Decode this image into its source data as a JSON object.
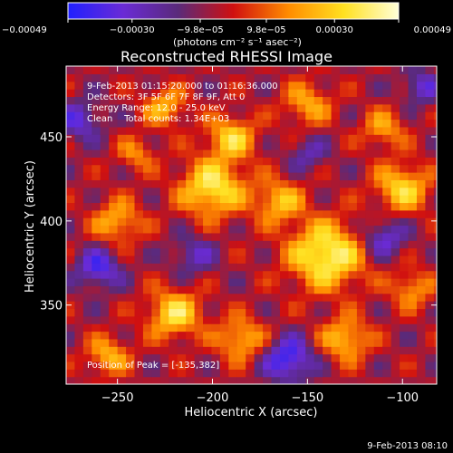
{
  "chart_data": {
    "type": "heatmap",
    "title": "Reconstructed RHESSI Image",
    "xlabel": "Heliocentric X (arcsec)",
    "ylabel": "Heliocentric Y (arcsec)",
    "xlim": [
      -277,
      -82
    ],
    "ylim": [
      303,
      492
    ],
    "xticks": [
      -250,
      -200,
      -150,
      -100
    ],
    "xtick_labels": [
      "−250",
      "−200",
      "−150",
      "−100"
    ],
    "yticks": [
      350,
      400,
      450
    ],
    "ytick_labels": [
      "350",
      "400",
      "450"
    ],
    "annotations": [
      "9-Feb-2013 01:15:20.000 to 01:16:36.000",
      "Detectors: 3F 5F 6F 7F 8F 9F, Att 0",
      "Energy Range: 12.0 - 25.0 keV",
      "Clean    Total counts: 1.34E+03"
    ],
    "peak_label": "Position of Peak = [-135,382]",
    "peak_position": [
      -135,
      382
    ],
    "colorbar": {
      "range": [
        -0.00049,
        0.00049
      ],
      "ticks": [
        -0.00049,
        -0.0003,
        -9.8e-05,
        9.8e-05,
        0.0003,
        0.00049
      ],
      "tick_labels": [
        "−0.00049",
        "−0.00030",
        "−9.8e−05",
        "9.8e−05",
        "0.00030",
        "0.00049"
      ],
      "unit_label": "(photons cm⁻² s⁻¹ asec⁻²)",
      "colors": [
        "#2020ff",
        "#6a2bd6",
        "#5a2a7a",
        "#d01010",
        "#ff8c00",
        "#ffe020",
        "#ffffd8"
      ]
    },
    "grid": false,
    "blobs": [
      {
        "x": -140,
        "y": 380,
        "amp": 0.00049,
        "r": 14
      },
      {
        "x": -200,
        "y": 420,
        "amp": 0.00044,
        "r": 12
      },
      {
        "x": -190,
        "y": 450,
        "amp": 0.00036,
        "r": 9
      },
      {
        "x": -225,
        "y": 468,
        "amp": 0.0003,
        "r": 8
      },
      {
        "x": -250,
        "y": 400,
        "amp": 0.0003,
        "r": 9
      },
      {
        "x": -220,
        "y": 345,
        "amp": 0.0004,
        "r": 10
      },
      {
        "x": -185,
        "y": 330,
        "amp": 0.00032,
        "r": 9
      },
      {
        "x": -100,
        "y": 420,
        "amp": 0.00038,
        "r": 10
      },
      {
        "x": -110,
        "y": 455,
        "amp": 0.00026,
        "r": 8
      },
      {
        "x": -150,
        "y": 470,
        "amp": 0.00028,
        "r": 9
      },
      {
        "x": -130,
        "y": 330,
        "amp": 0.00034,
        "r": 9
      },
      {
        "x": -255,
        "y": 320,
        "amp": 0.0003,
        "r": 8
      },
      {
        "x": -95,
        "y": 360,
        "amp": 0.00026,
        "r": 8
      },
      {
        "x": -165,
        "y": 412,
        "amp": 0.00032,
        "r": 9
      },
      {
        "x": -240,
        "y": 440,
        "amp": 0.00022,
        "r": 7
      },
      {
        "x": -160,
        "y": 318,
        "amp": -0.0004,
        "r": 9
      },
      {
        "x": -260,
        "y": 372,
        "amp": -0.00034,
        "r": 8
      },
      {
        "x": -110,
        "y": 390,
        "amp": -0.0003,
        "r": 8
      },
      {
        "x": -90,
        "y": 480,
        "amp": -0.00026,
        "r": 7
      },
      {
        "x": -270,
        "y": 460,
        "amp": -0.00028,
        "r": 8
      },
      {
        "x": -210,
        "y": 380,
        "amp": -0.00022,
        "r": 8
      },
      {
        "x": -150,
        "y": 440,
        "amp": -0.0002,
        "r": 7
      }
    ]
  },
  "footer": {
    "date_stamp": "9-Feb-2013 08:10"
  }
}
